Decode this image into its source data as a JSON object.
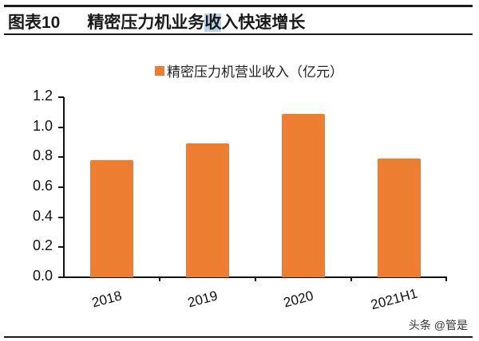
{
  "header": {
    "figure_label": "图表10",
    "title_pre": "精密压力机业务",
    "title_highlight": "收",
    "title_post": "入快速增长"
  },
  "watermark": "头条 @管是",
  "colors": {
    "bar": "#ed7d31",
    "axis": "#111111",
    "highlight": "#b9d3ea"
  },
  "chart_data": {
    "type": "bar",
    "title": "精密压力机业务收入快速增长",
    "categories": [
      "2018",
      "2019",
      "2020",
      "2021H1"
    ],
    "series": [
      {
        "name": "精密压力机营业收入（亿元）",
        "values": [
          0.78,
          0.89,
          1.09,
          0.79
        ]
      }
    ],
    "xlabel": "",
    "ylabel": "",
    "ylim": [
      0.0,
      1.2
    ],
    "yticks": [
      "0.0",
      "0.2",
      "0.4",
      "0.6",
      "0.8",
      "1.0",
      "1.2"
    ],
    "grid": false,
    "legend_position": "top"
  }
}
